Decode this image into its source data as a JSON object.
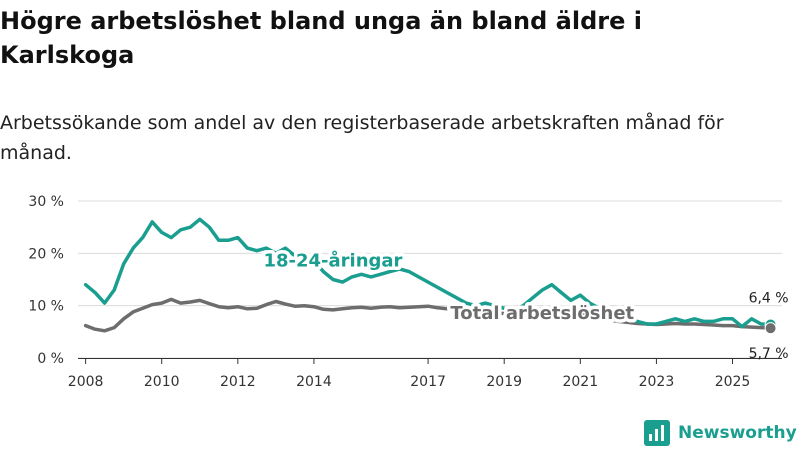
{
  "title": "Högre arbetslöshet bland unga än bland äldre i Karlskoga",
  "subtitle": "Arbetssökande som andel av den registerbaserade arbetskraften månad för månad.",
  "brand": {
    "name": "Newsworthy",
    "color": "#1a9e8f"
  },
  "colors": {
    "youth": "#1a9e8f",
    "total": "#6d6d6d",
    "grid": "#dcdcdc",
    "axis": "#333333"
  },
  "chart_data": {
    "type": "line",
    "title": "Högre arbetslöshet bland unga än bland äldre i Karlskoga",
    "xlabel": "",
    "ylabel": "",
    "xlim": [
      2007.8,
      2026.3
    ],
    "ylim": [
      0,
      30
    ],
    "y_ticks": [
      0,
      10,
      20,
      30
    ],
    "y_tick_labels": [
      "0 %",
      "10 %",
      "20 %",
      "30 %"
    ],
    "x_ticks": [
      2008,
      2010,
      2012,
      2014,
      2017,
      2019,
      2021,
      2023,
      2025
    ],
    "x_tick_labels": [
      "2008",
      "2010",
      "2012",
      "2014",
      "2017",
      "2019",
      "2021",
      "2023",
      "2025"
    ],
    "series": [
      {
        "name": "18-24-åringar",
        "key": "youth",
        "end_label": "6,4 %",
        "x": [
          2008.0,
          2008.25,
          2008.5,
          2008.75,
          2009.0,
          2009.25,
          2009.5,
          2009.75,
          2010.0,
          2010.25,
          2010.5,
          2010.75,
          2011.0,
          2011.25,
          2011.5,
          2011.75,
          2012.0,
          2012.25,
          2012.5,
          2012.75,
          2013.0,
          2013.25,
          2013.5,
          2013.75,
          2014.0,
          2014.25,
          2014.5,
          2014.75,
          2015.0,
          2015.25,
          2015.5,
          2015.75,
          2016.0,
          2016.25,
          2016.5,
          2016.75,
          2017.0,
          2017.25,
          2017.5,
          2017.75,
          2018.0,
          2018.25,
          2018.5,
          2018.75,
          2019.0,
          2019.25,
          2019.5,
          2019.75,
          2020.0,
          2020.25,
          2020.5,
          2020.75,
          2021.0,
          2021.25,
          2021.5,
          2021.75,
          2022.0,
          2022.25,
          2022.5,
          2022.75,
          2023.0,
          2023.25,
          2023.5,
          2023.75,
          2024.0,
          2024.25,
          2024.5,
          2024.75,
          2025.0,
          2025.25,
          2025.5,
          2025.75,
          2026.0
        ],
        "values": [
          14,
          12.5,
          10.5,
          13,
          18,
          21,
          23,
          26,
          24,
          23,
          24.5,
          25,
          26.5,
          25,
          22.5,
          22.5,
          23,
          21,
          20.5,
          21,
          20,
          21,
          19.5,
          20,
          18.5,
          16.5,
          15,
          14.5,
          15.5,
          16,
          15.5,
          16,
          16.5,
          17,
          16.5,
          15.5,
          14.5,
          13.5,
          12.5,
          11.5,
          10.5,
          10,
          10.5,
          10,
          9.5,
          9,
          10,
          11.5,
          13,
          14,
          12.5,
          11,
          12,
          10.5,
          9.5,
          8.5,
          8,
          7.5,
          7,
          6.5,
          6.5,
          7,
          7.5,
          7,
          7.5,
          7,
          7,
          7.5,
          7.5,
          6,
          7.5,
          6.5,
          6.4
        ]
      },
      {
        "name": "Total arbetslöshet",
        "key": "total",
        "end_label": "5,7 %",
        "x": [
          2008.0,
          2008.25,
          2008.5,
          2008.75,
          2009.0,
          2009.25,
          2009.5,
          2009.75,
          2010.0,
          2010.25,
          2010.5,
          2010.75,
          2011.0,
          2011.25,
          2011.5,
          2011.75,
          2012.0,
          2012.25,
          2012.5,
          2012.75,
          2013.0,
          2013.25,
          2013.5,
          2013.75,
          2014.0,
          2014.25,
          2014.5,
          2014.75,
          2015.0,
          2015.25,
          2015.5,
          2015.75,
          2016.0,
          2016.25,
          2016.5,
          2016.75,
          2017.0,
          2017.25,
          2017.5,
          2017.75,
          2018.0,
          2018.25,
          2018.5,
          2018.75,
          2019.0,
          2019.25,
          2019.5,
          2019.75,
          2020.0,
          2020.25,
          2020.5,
          2020.75,
          2021.0,
          2021.25,
          2021.5,
          2021.75,
          2022.0,
          2022.25,
          2022.5,
          2022.75,
          2023.0,
          2023.25,
          2023.5,
          2023.75,
          2024.0,
          2024.25,
          2024.5,
          2024.75,
          2025.0,
          2025.25,
          2025.5,
          2025.75,
          2026.0
        ],
        "values": [
          6.2,
          5.5,
          5.2,
          5.8,
          7.5,
          8.8,
          9.5,
          10.2,
          10.5,
          11.2,
          10.5,
          10.7,
          11,
          10.4,
          9.8,
          9.6,
          9.8,
          9.4,
          9.5,
          10.2,
          10.8,
          10.3,
          9.9,
          10,
          9.8,
          9.3,
          9.2,
          9.4,
          9.6,
          9.7,
          9.5,
          9.7,
          9.8,
          9.6,
          9.7,
          9.8,
          9.9,
          9.6,
          9.4,
          9.2,
          9.0,
          8.8,
          8.6,
          8.6,
          8.5,
          8.5,
          8.6,
          9.0,
          9.5,
          9.6,
          9.2,
          8.8,
          8.4,
          8.0,
          7.6,
          7.3,
          7.0,
          6.8,
          6.6,
          6.5,
          6.4,
          6.5,
          6.6,
          6.5,
          6.5,
          6.4,
          6.3,
          6.2,
          6.2,
          6.0,
          5.9,
          5.8,
          5.7
        ]
      }
    ],
    "annotations": [
      {
        "text": "18-24-åringar",
        "series": "youth",
        "x": 2014.5,
        "y": 17.5
      },
      {
        "text": "Total arbetslöshet",
        "series": "total",
        "x": 2020.0,
        "y": 7.5
      }
    ]
  }
}
